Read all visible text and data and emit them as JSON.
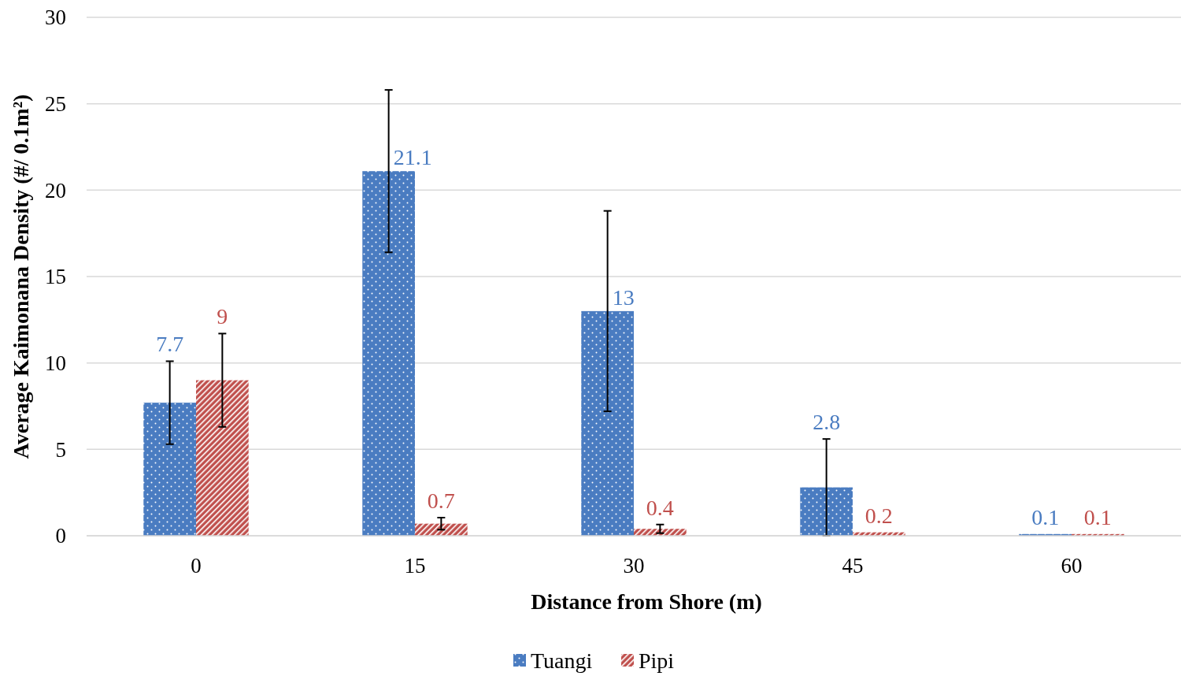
{
  "chart_data": {
    "type": "bar",
    "xlabel": "Distance from Shore (m)",
    "ylabel": "Average Kaimonana Density (#/ 0.1m²)",
    "categories": [
      "0",
      "15",
      "30",
      "45",
      "60"
    ],
    "series": [
      {
        "name": "Tuangi",
        "color": "#4a7cc1",
        "values": [
          7.7,
          21.1,
          13,
          2.8,
          0.1
        ],
        "errors": [
          2.4,
          4.7,
          5.8,
          2.8,
          null
        ]
      },
      {
        "name": "Pipi",
        "color": "#c0504d",
        "values": [
          9,
          0.7,
          0.4,
          0.2,
          0.1
        ],
        "errors": [
          2.7,
          0.35,
          0.25,
          null,
          null
        ]
      }
    ],
    "ylim": [
      0,
      30
    ],
    "yticks": [
      0,
      5,
      10,
      15,
      20,
      25,
      30
    ],
    "grid": "y",
    "legend": "bottom",
    "data_labels": true
  }
}
